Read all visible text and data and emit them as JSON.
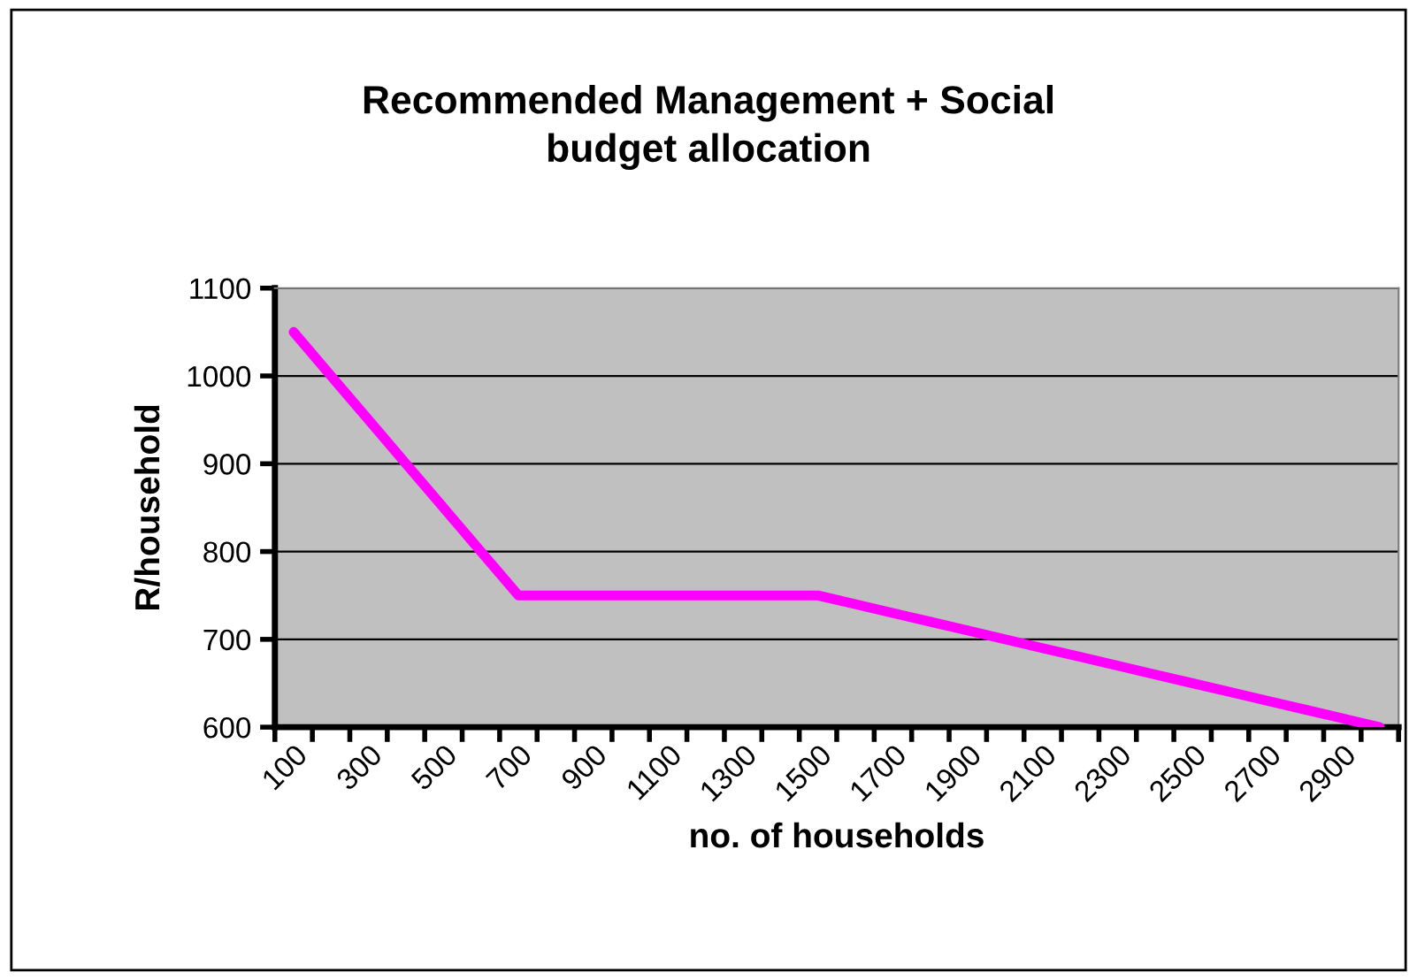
{
  "chart_data": {
    "type": "line",
    "title": "Recommended Management + Social budget allocation",
    "xlabel": "no. of households",
    "ylabel": "R/household",
    "categories": [
      "100",
      null,
      "300",
      null,
      "500",
      null,
      "700",
      null,
      "900",
      null,
      "1100",
      null,
      "1300",
      null,
      "1500",
      null,
      "1700",
      null,
      "1900",
      null,
      "2100",
      null,
      "2300",
      null,
      "2500",
      null,
      "2700",
      null,
      "2900",
      null
    ],
    "series": [
      {
        "color": "#ff00ff",
        "values": [
          1050,
          1000,
          950,
          900,
          850,
          800,
          750,
          750,
          750,
          750,
          750,
          750,
          750,
          750,
          750,
          740,
          730,
          720,
          710,
          700,
          690,
          680,
          670,
          660,
          650,
          640,
          630,
          620,
          610,
          600
        ]
      }
    ],
    "ylim": [
      600,
      1100
    ],
    "yticks": [
      600,
      700,
      800,
      900,
      1000,
      1100
    ],
    "grid": "y",
    "marker": "none",
    "line_style": "solid"
  }
}
